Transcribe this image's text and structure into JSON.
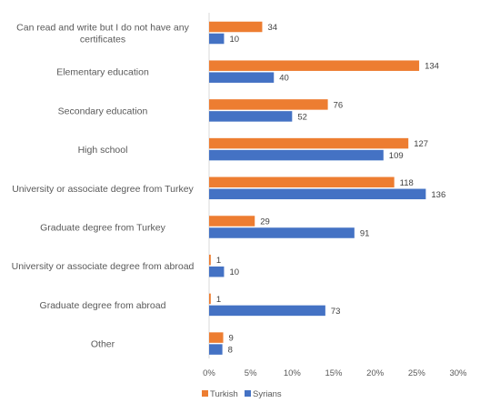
{
  "chart_data": {
    "type": "bar",
    "orientation": "horizontal",
    "categories": [
      [
        "Can read and write but I do not have any",
        "certificates"
      ],
      [
        "Elementary education"
      ],
      [
        "Secondary education"
      ],
      [
        "High school"
      ],
      [
        "University or associate degree from Turkey"
      ],
      [
        "Graduate degree from Turkey"
      ],
      [
        "University or associate degree from abroad"
      ],
      [
        "Graduate degree from abroad"
      ],
      [
        "Other"
      ]
    ],
    "series": [
      {
        "name": "Turkish",
        "color": "#ED7D31",
        "labels": [
          "34",
          "134",
          "76",
          "127",
          "118",
          "29",
          "1",
          "1",
          "9"
        ],
        "values": [
          6.4,
          25.3,
          14.3,
          24.0,
          22.3,
          5.5,
          0.2,
          0.2,
          1.7
        ]
      },
      {
        "name": "Syrians",
        "color": "#4472C4",
        "labels": [
          "10",
          "40",
          "52",
          "109",
          "136",
          "91",
          "10",
          "73",
          "8"
        ],
        "values": [
          1.8,
          7.8,
          10.0,
          21.0,
          26.1,
          17.5,
          1.8,
          14.0,
          1.6
        ]
      }
    ],
    "x_ticks": [
      "0%",
      "5%",
      "10%",
      "15%",
      "20%",
      "25%",
      "30%"
    ],
    "xlim": [
      0,
      30
    ],
    "legend": {
      "position": "bottom"
    }
  }
}
